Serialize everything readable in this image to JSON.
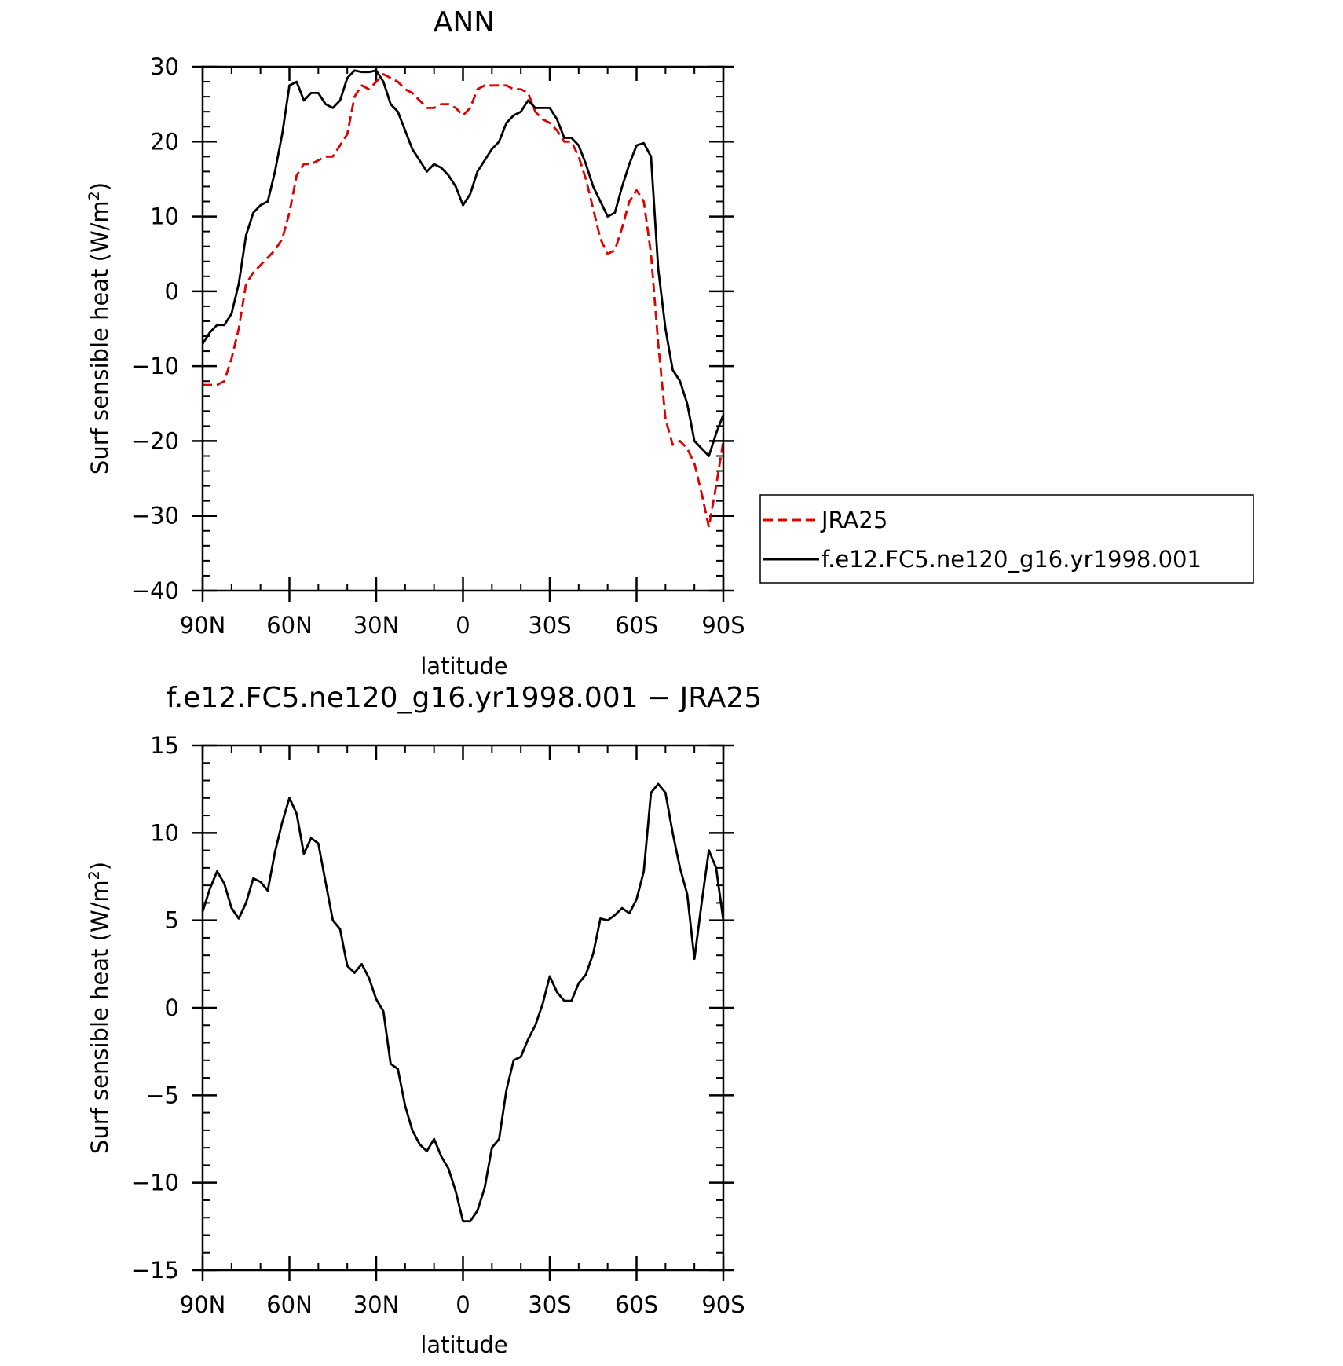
{
  "chart_data": [
    {
      "type": "line",
      "title": "ANN",
      "xlabel": "latitude",
      "ylabel": "Surf sensible heat (W/m²)",
      "ylabel_parts": {
        "main": "Surf sensible heat (W/m",
        "sup": "2",
        "tail": ")"
      },
      "xlim": [
        90,
        -90
      ],
      "ylim": [
        -40,
        30
      ],
      "x_ticks": [
        90,
        60,
        30,
        0,
        -30,
        -60,
        -90
      ],
      "x_tick_labels": [
        "90N",
        "60N",
        "30N",
        "0",
        "30S",
        "60S",
        "90S"
      ],
      "y_ticks": [
        30,
        20,
        10,
        0,
        -10,
        -20,
        -30,
        -40
      ],
      "y_tick_labels": [
        "30",
        "20",
        "10",
        "0",
        "−10",
        "−20",
        "−30",
        "−40"
      ],
      "legend_position": "right",
      "series": [
        {
          "name": "JRA25",
          "color": "#e00000",
          "dash": true,
          "x": [
            90,
            87.5,
            85,
            82.5,
            80,
            77.5,
            75,
            72.5,
            70,
            67.5,
            65,
            62.5,
            60,
            57.5,
            55,
            52.5,
            50,
            47.5,
            45,
            42.5,
            40,
            37.5,
            35,
            32.5,
            30,
            27.5,
            25,
            22.5,
            20,
            17.5,
            15,
            12.5,
            10,
            7.5,
            5,
            2.5,
            0,
            -2.5,
            -5,
            -7.5,
            -10,
            -12.5,
            -15,
            -17.5,
            -20,
            -22.5,
            -25,
            -27.5,
            -30,
            -32.5,
            -35,
            -37.5,
            -40,
            -42.5,
            -45,
            -47.5,
            -50,
            -52.5,
            -55,
            -57.5,
            -60,
            -62.5,
            -65,
            -67.5,
            -70,
            -72.5,
            -75,
            -77.5,
            -80,
            -82.5,
            -85,
            -87.5,
            -90
          ],
          "values": [
            -12.5,
            -12.5,
            -12.5,
            -12,
            -9,
            -5,
            1,
            2.5,
            3.5,
            4.5,
            5.5,
            7,
            10.5,
            15.5,
            17,
            17,
            17.5,
            18,
            18,
            19.5,
            21,
            26,
            27.5,
            27,
            28,
            29,
            28.5,
            28,
            27,
            26.5,
            25.5,
            24.5,
            24.5,
            25,
            25,
            24.5,
            23.5,
            24.5,
            27,
            27.5,
            27.5,
            27.5,
            27.5,
            27,
            27,
            26.5,
            24,
            23,
            22.5,
            21.5,
            20,
            20,
            18,
            15,
            11,
            7,
            5,
            5.5,
            8.5,
            12,
            13.5,
            12,
            5,
            -7,
            -17,
            -20.5,
            -20,
            -21,
            -23,
            -27,
            -31.5,
            -26,
            -20
          ]
        },
        {
          "name": "f.e12.FC5.ne120_g16.yr1998.001",
          "color": "#000000",
          "dash": false,
          "x": [
            90,
            87.5,
            85,
            82.5,
            80,
            77.5,
            75,
            72.5,
            70,
            67.5,
            65,
            62.5,
            60,
            57.5,
            55,
            52.5,
            50,
            47.5,
            45,
            42.5,
            40,
            37.5,
            35,
            32.5,
            30,
            27.5,
            25,
            22.5,
            20,
            17.5,
            15,
            12.5,
            10,
            7.5,
            5,
            2.5,
            0,
            -2.5,
            -5,
            -7.5,
            -10,
            -12.5,
            -15,
            -17.5,
            -20,
            -22.5,
            -25,
            -27.5,
            -30,
            -32.5,
            -35,
            -37.5,
            -40,
            -42.5,
            -45,
            -47.5,
            -50,
            -52.5,
            -55,
            -57.5,
            -60,
            -62.5,
            -65,
            -67.5,
            -70,
            -72.5,
            -75,
            -77.5,
            -80,
            -82.5,
            -85,
            -87.5,
            -90
          ],
          "values": [
            -7,
            -5.5,
            -4.5,
            -4.5,
            -3,
            1,
            7.5,
            10.5,
            11.5,
            12,
            16,
            21,
            27.5,
            28,
            25.5,
            26.5,
            26.5,
            25,
            24.5,
            25.5,
            28.5,
            29.5,
            29.3,
            29.3,
            29.5,
            28,
            25,
            24,
            21.5,
            19,
            17.5,
            16,
            17,
            16.5,
            15.5,
            14,
            11.5,
            13,
            16,
            17.5,
            19,
            20,
            22.5,
            23.5,
            24,
            25.5,
            24.5,
            24.5,
            24.5,
            23,
            20.5,
            20.5,
            19.5,
            17,
            14,
            12,
            10,
            10.5,
            14,
            17,
            19.5,
            19.8,
            18,
            3,
            -5,
            -10.5,
            -12,
            -15,
            -20,
            -21,
            -22,
            -19,
            -16.5
          ]
        }
      ]
    },
    {
      "type": "line",
      "title": "f.e12.FC5.ne120_g16.yr1998.001 − JRA25",
      "xlabel": "latitude",
      "ylabel": "Surf sensible heat (W/m²)",
      "ylabel_parts": {
        "main": "Surf sensible heat (W/m",
        "sup": "2",
        "tail": ")"
      },
      "xlim": [
        90,
        -90
      ],
      "ylim": [
        -15,
        15
      ],
      "x_ticks": [
        90,
        60,
        30,
        0,
        -30,
        -60,
        -90
      ],
      "x_tick_labels": [
        "90N",
        "60N",
        "30N",
        "0",
        "30S",
        "60S",
        "90S"
      ],
      "y_ticks": [
        15,
        10,
        5,
        0,
        -5,
        -10,
        -15
      ],
      "y_tick_labels": [
        "15",
        "10",
        "5",
        "0",
        "−5",
        "−10",
        "−15"
      ],
      "series": [
        {
          "color": "#000000",
          "dash": false,
          "x": [
            90,
            87.5,
            85,
            82.5,
            80,
            77.5,
            75,
            72.5,
            70,
            67.5,
            65,
            62.5,
            60,
            57.5,
            55,
            52.5,
            50,
            47.5,
            45,
            42.5,
            40,
            37.5,
            35,
            32.5,
            30,
            27.5,
            25,
            22.5,
            20,
            17.5,
            15,
            12.5,
            10,
            7.5,
            5,
            2.5,
            0,
            -2.5,
            -5,
            -7.5,
            -10,
            -12.5,
            -15,
            -17.5,
            -20,
            -22.5,
            -25,
            -27.5,
            -30,
            -32.5,
            -35,
            -37.5,
            -40,
            -42.5,
            -45,
            -47.5,
            -50,
            -52.5,
            -55,
            -57.5,
            -60,
            -62.5,
            -65,
            -67.5,
            -70,
            -72.5,
            -75,
            -77.5,
            -80,
            -82.5,
            -85,
            -87.5,
            -90
          ],
          "values": [
            5.5,
            6.8,
            7.8,
            7.1,
            5.7,
            5.1,
            6.0,
            7.4,
            7.2,
            6.7,
            8.9,
            10.6,
            12.0,
            11.1,
            8.8,
            9.7,
            9.4,
            7.2,
            5.0,
            4.5,
            2.4,
            2.0,
            2.5,
            1.7,
            0.5,
            -0.2,
            -3.2,
            -3.5,
            -5.6,
            -7.0,
            -7.8,
            -8.2,
            -7.5,
            -8.5,
            -9.2,
            -10.5,
            -12.2,
            -12.2,
            -11.6,
            -10.3,
            -8.0,
            -7.5,
            -4.7,
            -3.0,
            -2.8,
            -1.8,
            -1.0,
            0.2,
            1.8,
            0.9,
            0.4,
            0.4,
            1.4,
            1.9,
            3.1,
            5.1,
            5.0,
            5.3,
            5.7,
            5.4,
            6.2,
            7.8,
            12.3,
            12.8,
            12.3,
            10.0,
            8.0,
            6.5,
            2.8,
            6.0,
            9.0,
            8.0,
            5.0
          ]
        }
      ]
    }
  ]
}
